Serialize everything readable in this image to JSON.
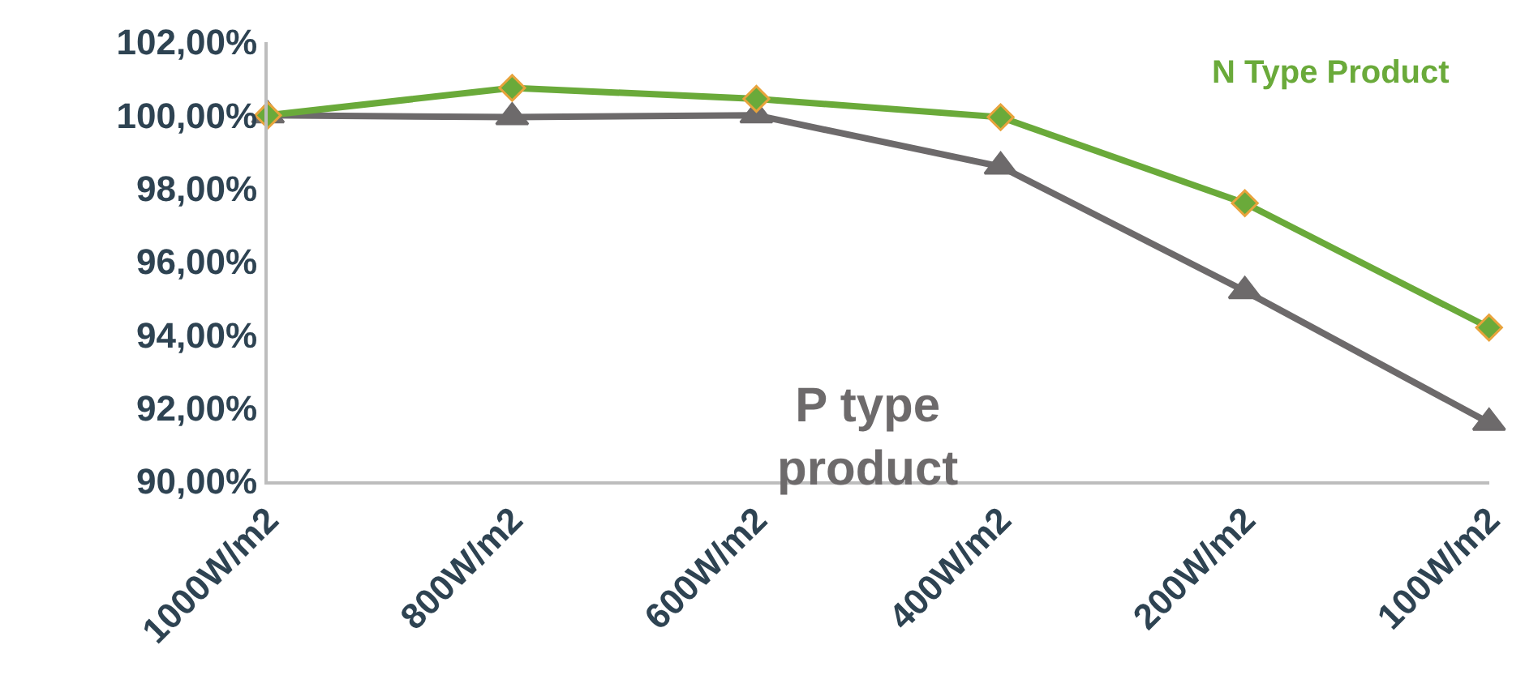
{
  "chart_data": {
    "type": "line",
    "categories": [
      "1000W/m2",
      "800W/m2",
      "600W/m2",
      "400W/m2",
      "200W/m2",
      "100W/m2"
    ],
    "series": [
      {
        "name": "N Type Product",
        "color": "#6aaa3a",
        "marker": "diamond",
        "values": [
          100.0,
          100.75,
          100.45,
          99.95,
          97.6,
          94.2
        ]
      },
      {
        "name": "P type product",
        "color": "#6d6a6b",
        "marker": "triangle",
        "values": [
          100.0,
          99.95,
          100.0,
          98.6,
          95.2,
          91.6
        ]
      }
    ],
    "ylim": [
      90,
      102
    ],
    "yticks": [
      {
        "value": 90,
        "label": "90,00%"
      },
      {
        "value": 92,
        "label": "92,00%"
      },
      {
        "value": 94,
        "label": "94,00%"
      },
      {
        "value": 96,
        "label": "96,00%"
      },
      {
        "value": 98,
        "label": "98,00%"
      },
      {
        "value": 100,
        "label": "100,00%"
      },
      {
        "value": 102,
        "label": "102,00%"
      }
    ],
    "grid": false,
    "legend": false,
    "line_style": "solid"
  }
}
